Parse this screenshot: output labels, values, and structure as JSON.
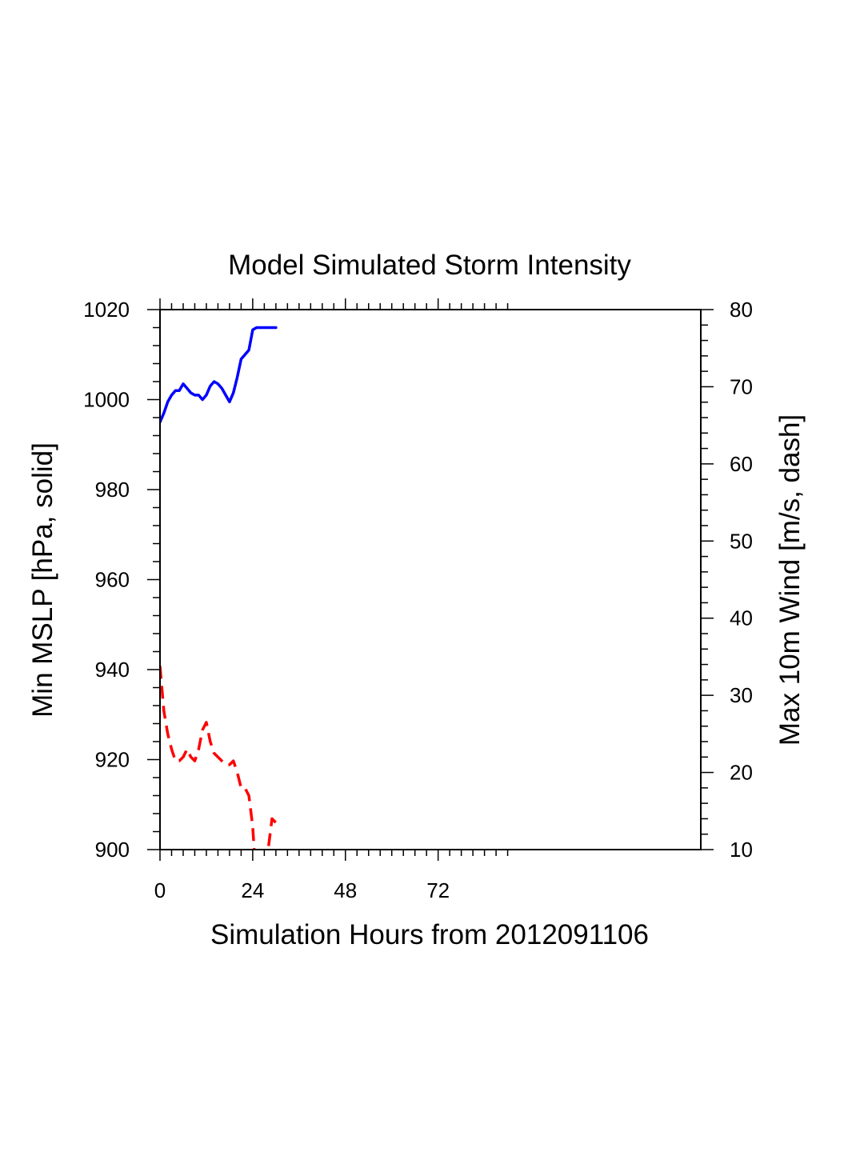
{
  "chart_data": {
    "type": "line",
    "title": "Model Simulated Storm Intensity",
    "xlabel": "Simulation Hours from 2012091106",
    "ylabel_left": "Min MSLP  [hPa, solid]",
    "ylabel_right": "Max 10m Wind  [m/s, dash]",
    "xlim": [
      0,
      140
    ],
    "ylim_left": [
      900,
      1020
    ],
    "ylim_right": [
      10,
      80
    ],
    "x_ticks": [
      0,
      24,
      48,
      72
    ],
    "x_tick_labels": [
      "0",
      "24",
      "48",
      "72"
    ],
    "y_left_ticks": [
      900,
      920,
      940,
      960,
      980,
      1000,
      1020
    ],
    "y_left_tick_labels": [
      "900",
      "920",
      "940",
      "960",
      "980",
      "1000",
      "1020"
    ],
    "y_right_ticks": [
      10,
      20,
      30,
      40,
      50,
      60,
      70,
      80
    ],
    "y_right_tick_labels": [
      "10",
      "20",
      "30",
      "40",
      "50",
      "60",
      "70",
      "80"
    ],
    "grid": false,
    "series": [
      {
        "axis": "left",
        "style": "solid",
        "color": "#0000ff",
        "x": [
          0,
          1,
          2,
          3,
          4,
          5,
          6,
          7,
          8,
          9,
          10,
          11,
          12,
          13,
          14,
          15,
          16,
          17,
          18,
          19,
          20,
          21,
          22,
          23,
          24,
          25,
          26,
          27,
          28,
          29,
          30
        ],
        "y": [
          995,
          997,
          999.5,
          1001,
          1002,
          1002,
          1003.5,
          1002.5,
          1001.5,
          1001,
          1001,
          1000,
          1001,
          1003,
          1004,
          1003.5,
          1002.5,
          1001,
          999.5,
          1001.5,
          1005,
          1009,
          1010,
          1011,
          1015.5,
          1016,
          1016,
          1016,
          1016,
          1016,
          1016
        ]
      },
      {
        "axis": "right",
        "style": "dashed",
        "color": "#ff0000",
        "x": [
          0,
          1,
          2,
          3,
          4,
          5,
          6,
          7,
          8,
          9,
          10,
          11,
          12,
          13,
          14,
          15,
          16,
          17,
          18,
          19,
          20,
          21,
          22,
          23,
          24,
          25,
          26,
          27,
          28,
          29,
          30
        ],
        "y": [
          33.8,
          28,
          25,
          23,
          21.5,
          21.5,
          22,
          23,
          22,
          21.5,
          23,
          25.5,
          26.5,
          24,
          22.5,
          22,
          21.5,
          21,
          21,
          21.5,
          20,
          18,
          18,
          17,
          13,
          5,
          0,
          6,
          10,
          14,
          13.5
        ]
      }
    ]
  }
}
